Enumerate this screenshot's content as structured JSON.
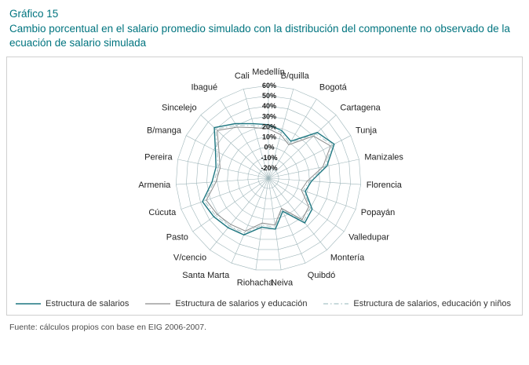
{
  "page": {
    "title_label": "Gráfico 15",
    "title": "Cambio porcentual en el salario promedio simulado con la distribución del componente no observado de la ecuación de salario simulada",
    "source": "Fuente: cálculos propios con base en EIG 2006-2007."
  },
  "colors": {
    "accent": "#00747F",
    "grid": "#9FB6BA",
    "tick_text": "#1a1a1a",
    "label_text": "#222222"
  },
  "chart_data": {
    "type": "radar",
    "title": "Cambio porcentual en el salario promedio simulado con la distribución del componente no observado de la ecuación de salario simulada",
    "categories": [
      "Medellín",
      "B/quilla",
      "Bogotá",
      "Cartagena",
      "Tunja",
      "Manizales",
      "Florencia",
      "Popayán",
      "Valledupar",
      "Montería",
      "Quibdó",
      "Neiva",
      "Riohacha",
      "Santa Marta",
      "V/cencio",
      "Pasto",
      "Cúcuta",
      "Armenia",
      "Pereira",
      "B/manga",
      "Sincelejo",
      "Ibagué",
      "Cali"
    ],
    "ticks": [
      -20,
      -10,
      0,
      10,
      20,
      30,
      40,
      50,
      60
    ],
    "tick_labels": [
      "-20%",
      "-10%",
      "0%",
      "10%",
      "20%",
      "30%",
      "40%",
      "50%",
      "60%"
    ],
    "center_value": -30,
    "rmax": 60,
    "grid": true,
    "legend_position": "bottom",
    "series": [
      {
        "name": "Estructura de salarios",
        "color": "#1D7680",
        "dash": "",
        "values": [
          22,
          18,
          12,
          35,
          42,
          28,
          12,
          8,
          22,
          26,
          5,
          20,
          18,
          30,
          32,
          35,
          38,
          25,
          22,
          28,
          42,
          32,
          25
        ]
      },
      {
        "name": "Estructura de salarios y educación",
        "color": "#8C8C8C",
        "dash": "",
        "values": [
          18,
          14,
          8,
          30,
          38,
          24,
          8,
          4,
          18,
          22,
          2,
          16,
          14,
          26,
          28,
          31,
          34,
          21,
          18,
          24,
          38,
          28,
          21
        ]
      },
      {
        "name": "Estructura de salarios, educación y niños",
        "color": "#A9C4C6",
        "dash": "6 3 1.5 3",
        "values": [
          20,
          16,
          10,
          33,
          40,
          26,
          10,
          6,
          20,
          24,
          3,
          18,
          16,
          28,
          30,
          33,
          36,
          23,
          20,
          26,
          40,
          30,
          23
        ]
      }
    ]
  }
}
